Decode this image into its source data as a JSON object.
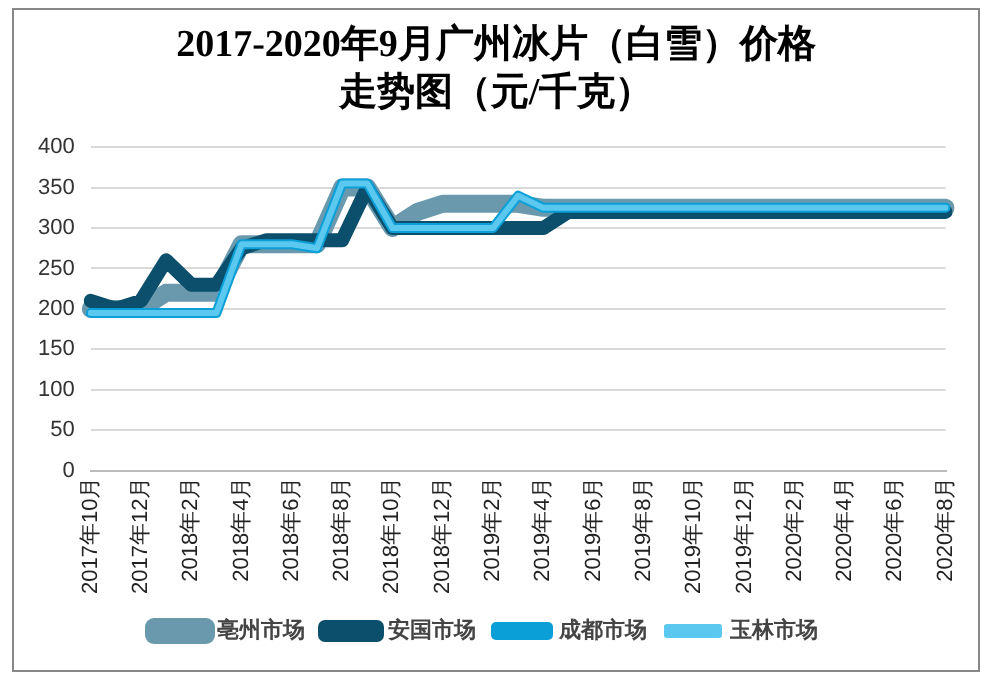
{
  "chart_data": {
    "type": "line",
    "title": "2017-2020年9月广州冰片（白雪）价格走势图（元/千克）",
    "categories": [
      "2017年10月",
      null,
      "2017年12月",
      null,
      "2018年2月",
      null,
      "2018年4月",
      null,
      "2018年6月",
      null,
      "2018年8月",
      null,
      "2018年10月",
      null,
      "2018年12月",
      null,
      "2019年2月",
      null,
      "2019年4月",
      null,
      "2019年6月",
      null,
      "2019年8月",
      null,
      "2019年10月",
      null,
      "2019年12月",
      null,
      "2020年2月",
      null,
      "2020年4月",
      null,
      "2020年6月",
      null,
      "2020年8月"
    ],
    "series": [
      {
        "name": "亳州市场",
        "color": "#6a99ad",
        "values": [
          200,
          200,
          200,
          220,
          220,
          220,
          280,
          280,
          280,
          280,
          350,
          350,
          300,
          320,
          330,
          330,
          330,
          330,
          325,
          325,
          325,
          325,
          325,
          325,
          325,
          325,
          325,
          325,
          325,
          325,
          325,
          325,
          325,
          325,
          325
        ]
      },
      {
        "name": "安国市场",
        "color": "#0b4f6c",
        "values": [
          210,
          200,
          210,
          260,
          230,
          230,
          275,
          285,
          285,
          285,
          285,
          350,
          300,
          300,
          300,
          300,
          300,
          300,
          300,
          320,
          320,
          320,
          320,
          320,
          320,
          320,
          320,
          320,
          320,
          320,
          320,
          320,
          320,
          320,
          320
        ]
      },
      {
        "name": "成都市场",
        "color": "#0a9fd6",
        "values": [
          195,
          195,
          195,
          195,
          195,
          195,
          280,
          280,
          280,
          275,
          355,
          355,
          300,
          300,
          300,
          300,
          300,
          340,
          325,
          325,
          325,
          325,
          325,
          325,
          325,
          325,
          325,
          325,
          325,
          325,
          325,
          325,
          325,
          325,
          325
        ]
      },
      {
        "name": "玉林市场",
        "color": "#5bc8f0",
        "values": [
          195,
          195,
          195,
          195,
          195,
          195,
          280,
          280,
          280,
          275,
          355,
          355,
          300,
          300,
          300,
          300,
          300,
          340,
          325,
          325,
          325,
          325,
          325,
          325,
          325,
          325,
          325,
          325,
          325,
          325,
          325,
          325,
          325,
          325,
          325
        ]
      }
    ],
    "ylim": [
      0,
      400
    ],
    "yticks": [
      0,
      50,
      100,
      150,
      200,
      250,
      300,
      350,
      400
    ],
    "grid": "y",
    "legend": "bottom",
    "marker": "none",
    "line_style": "solid"
  }
}
